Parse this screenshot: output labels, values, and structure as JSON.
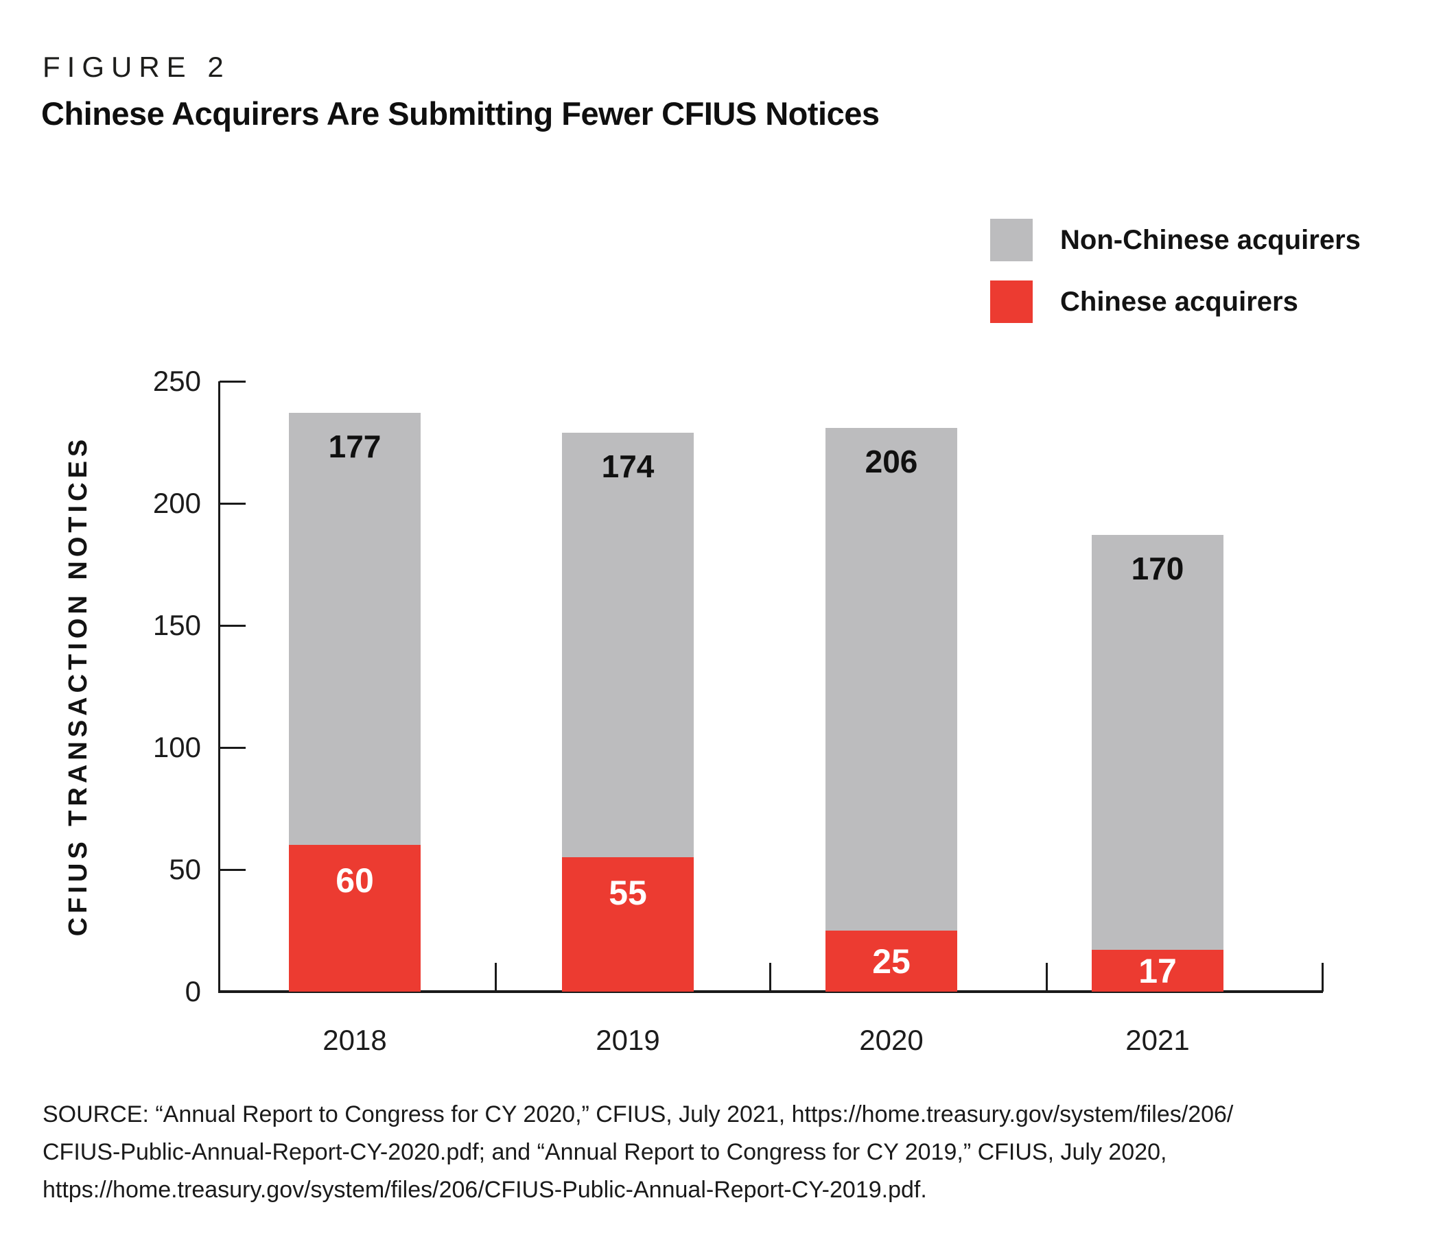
{
  "figure_label": "FIGURE 2",
  "title": "Chinese Acquirers Are Submitting Fewer CFIUS Notices",
  "legend": [
    {
      "label": "Non-Chinese acquirers",
      "color": "#BCBCBE"
    },
    {
      "label": "Chinese acquirers",
      "color": "#EC3B31"
    }
  ],
  "colors": {
    "bar_gray": "#BCBCBE",
    "bar_red": "#EC3B31",
    "axis": "#1a1a1a",
    "text": "#131313"
  },
  "chart_data": {
    "type": "bar",
    "stacked": true,
    "categories": [
      "2018",
      "2019",
      "2020",
      "2021"
    ],
    "series": [
      {
        "name": "Chinese acquirers",
        "color": "#EC3B31",
        "values": [
          60,
          55,
          25,
          17
        ]
      },
      {
        "name": "Non-Chinese acquirers",
        "color": "#BCBCBE",
        "values": [
          177,
          174,
          206,
          170
        ]
      }
    ],
    "totals": [
      237,
      229,
      231,
      187
    ],
    "title": "Chinese Acquirers Are Submitting Fewer CFIUS Notices",
    "xlabel": "",
    "ylabel": "CFIUS TRANSACTION NOTICES",
    "ylim": [
      0,
      250
    ],
    "yticks": [
      0,
      50,
      100,
      150,
      200,
      250
    ],
    "grid": false,
    "legend_position": "top-right",
    "value_labels": {
      "non_chinese": [
        "177",
        "174",
        "206",
        "170"
      ],
      "chinese": [
        "60",
        "55",
        "25",
        "17"
      ]
    }
  },
  "source": {
    "text": "SOURCE: “Annual Report to Congress for CY 2020,” CFIUS, July 2021, https://home.treasury.gov/system/files/206/\nCFIUS-Public-Annual-Report-CY-2020.pdf; and “Annual Report to Congress for CY 2019,” CFIUS, July 2020,\nhttps://home.treasury.gov/system/files/206/CFIUS-Public-Annual-Report-CY-2019.pdf."
  }
}
